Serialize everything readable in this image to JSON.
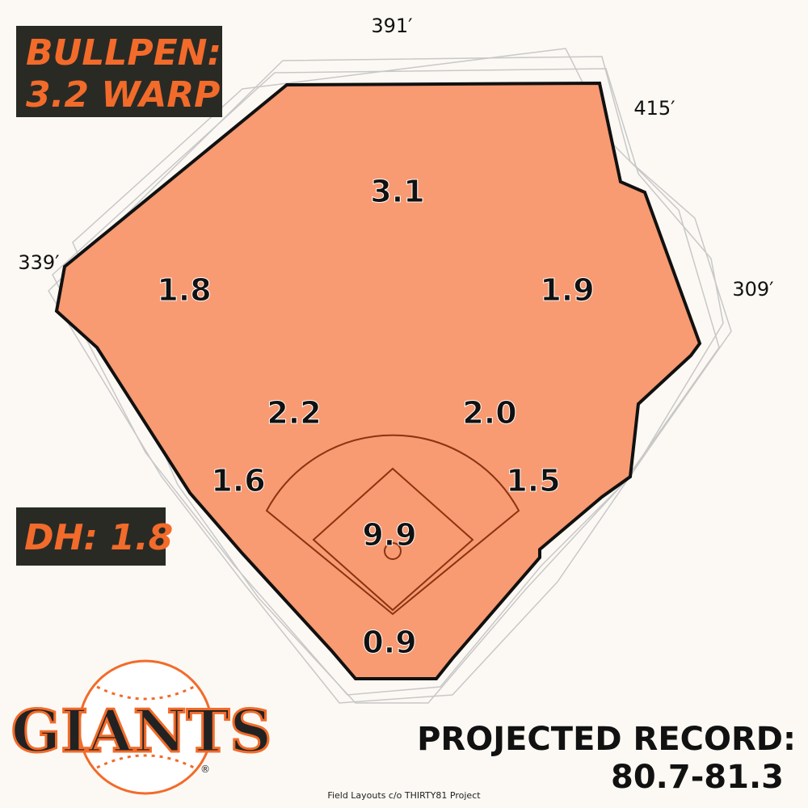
{
  "bullpen": {
    "label": "BULLPEN:",
    "value": "3.2 WARP"
  },
  "dh": "DH: 1.8",
  "distances": [
    "391′",
    "415′",
    "339′",
    "309′"
  ],
  "positions": [
    "3.1",
    "1.8",
    "1.9",
    "2.2",
    "2.0",
    "1.6",
    "1.5",
    "9.9",
    "0.9"
  ],
  "logo": {
    "text": "GIANTS",
    "mark": "®"
  },
  "record": {
    "label": "PROJECTED RECORD:",
    "value": "80.7-81.3"
  },
  "credit": "Field Layouts c/o THIRTY81 Project"
}
